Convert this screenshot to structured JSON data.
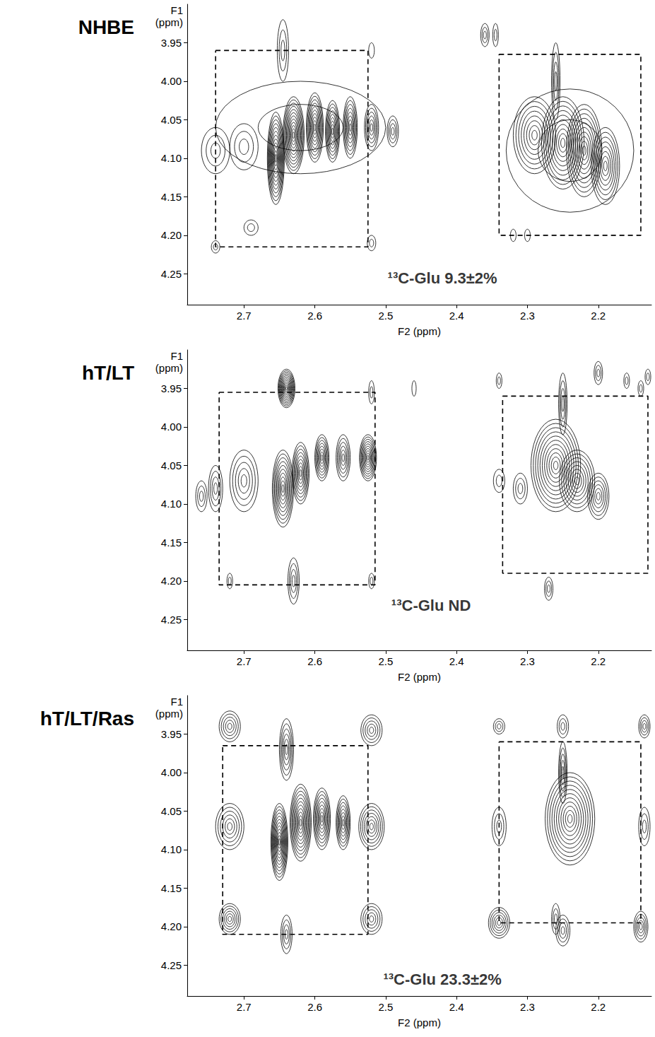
{
  "chart_data": [
    {
      "type": "contour",
      "title": "NHBE",
      "xlabel": "F2 (ppm)",
      "ylabel": "F1 (ppm)",
      "xlim": [
        2.78,
        2.125
      ],
      "ylim": [
        4.29,
        3.9
      ],
      "xticks": [
        2.7,
        2.6,
        2.5,
        2.4,
        2.3,
        2.2
      ],
      "yticks": [
        3.95,
        {
          "value": 4,
          "label": "4.00"
        },
        4.05,
        {
          "value": 4.1,
          "label": "4.10"
        },
        4.15,
        {
          "value": 4.2,
          "label": "4.20"
        },
        4.25
      ],
      "grid": false,
      "color": "#000000",
      "annotations": [
        {
          "text": "¹³C-Glu 9.3±2%",
          "x": 2.42,
          "y": 4.256
        }
      ],
      "boxes": [
        {
          "x": [
            2.74,
            2.525
          ],
          "y": [
            3.96,
            4.215
          ],
          "line_style": "dashed"
        },
        {
          "x": [
            2.34,
            2.14
          ],
          "y": [
            3.965,
            4.2
          ],
          "line_style": "dashed"
        }
      ],
      "peaks": [
        {
          "x": 2.62,
          "y": 4.06,
          "wx": 0.12,
          "wy": 0.06,
          "levels": 2
        },
        {
          "x": 2.655,
          "y": 4.1,
          "wx": 0.012,
          "wy": 0.06,
          "levels": 12
        },
        {
          "x": 2.63,
          "y": 4.07,
          "wx": 0.015,
          "wy": 0.05,
          "levels": 12
        },
        {
          "x": 2.6,
          "y": 4.06,
          "wx": 0.012,
          "wy": 0.045,
          "levels": 10
        },
        {
          "x": 2.575,
          "y": 4.065,
          "wx": 0.01,
          "wy": 0.04,
          "levels": 9
        },
        {
          "x": 2.55,
          "y": 4.06,
          "wx": 0.01,
          "wy": 0.04,
          "levels": 8
        },
        {
          "x": 2.52,
          "y": 4.06,
          "wx": 0.01,
          "wy": 0.03,
          "levels": 6
        },
        {
          "x": 2.49,
          "y": 4.065,
          "wx": 0.008,
          "wy": 0.02,
          "levels": 4
        },
        {
          "x": 2.74,
          "y": 4.09,
          "wx": 0.02,
          "wy": 0.03,
          "levels": 3
        },
        {
          "x": 2.7,
          "y": 4.085,
          "wx": 0.02,
          "wy": 0.03,
          "levels": 3
        },
        {
          "x": 2.645,
          "y": 3.96,
          "wx": 0.008,
          "wy": 0.04,
          "levels": 3
        },
        {
          "x": 2.74,
          "y": 4.215,
          "wx": 0.006,
          "wy": 0.008,
          "levels": 2
        },
        {
          "x": 2.52,
          "y": 4.21,
          "wx": 0.006,
          "wy": 0.01,
          "levels": 2
        },
        {
          "x": 2.52,
          "y": 3.96,
          "wx": 0.004,
          "wy": 0.01,
          "levels": 1
        },
        {
          "x": 2.69,
          "y": 4.19,
          "wx": 0.01,
          "wy": 0.01,
          "levels": 2
        },
        {
          "x": 2.36,
          "y": 3.94,
          "wx": 0.006,
          "wy": 0.015,
          "levels": 3
        },
        {
          "x": 2.345,
          "y": 3.94,
          "wx": 0.004,
          "wy": 0.015,
          "levels": 2
        },
        {
          "x": 2.24,
          "y": 4.09,
          "wx": 0.09,
          "wy": 0.08,
          "levels": 2
        },
        {
          "x": 2.29,
          "y": 4.07,
          "wx": 0.03,
          "wy": 0.05,
          "levels": 8
        },
        {
          "x": 2.25,
          "y": 4.08,
          "wx": 0.03,
          "wy": 0.06,
          "levels": 10
        },
        {
          "x": 2.22,
          "y": 4.09,
          "wx": 0.025,
          "wy": 0.06,
          "levels": 10
        },
        {
          "x": 2.19,
          "y": 4.11,
          "wx": 0.02,
          "wy": 0.05,
          "levels": 8
        },
        {
          "x": 2.26,
          "y": 4.0,
          "wx": 0.006,
          "wy": 0.05,
          "levels": 4
        },
        {
          "x": 2.3,
          "y": 4.2,
          "wx": 0.004,
          "wy": 0.008,
          "levels": 1
        },
        {
          "x": 2.32,
          "y": 4.2,
          "wx": 0.004,
          "wy": 0.008,
          "levels": 1
        }
      ]
    },
    {
      "type": "contour",
      "title": "hT/LT",
      "xlabel": "F2 (ppm)",
      "ylabel": "F1 (ppm)",
      "xlim": [
        2.78,
        2.125
      ],
      "ylim": [
        4.29,
        3.9
      ],
      "xticks": [
        2.7,
        2.6,
        2.5,
        2.4,
        2.3,
        2.2
      ],
      "yticks": [
        3.95,
        {
          "value": 4,
          "label": "4.00"
        },
        4.05,
        {
          "value": 4.1,
          "label": "4.10"
        },
        4.15,
        {
          "value": 4.2,
          "label": "4.20"
        },
        4.25
      ],
      "grid": false,
      "color": "#000000",
      "annotations": [
        {
          "text": "¹³C-Glu ND",
          "x": 2.436,
          "y": 4.232
        }
      ],
      "boxes": [
        {
          "x": [
            2.735,
            2.515
          ],
          "y": [
            3.955,
            4.205
          ],
          "line_style": "dashed"
        },
        {
          "x": [
            2.335,
            2.13
          ],
          "y": [
            3.96,
            4.19
          ],
          "line_style": "dashed"
        }
      ],
      "peaks": [
        {
          "x": 2.64,
          "y": 3.95,
          "wx": 0.012,
          "wy": 0.025,
          "levels": 12
        },
        {
          "x": 2.645,
          "y": 4.08,
          "wx": 0.015,
          "wy": 0.05,
          "levels": 10
        },
        {
          "x": 2.62,
          "y": 4.06,
          "wx": 0.012,
          "wy": 0.04,
          "levels": 9
        },
        {
          "x": 2.59,
          "y": 4.04,
          "wx": 0.01,
          "wy": 0.03,
          "levels": 8
        },
        {
          "x": 2.56,
          "y": 4.04,
          "wx": 0.01,
          "wy": 0.03,
          "levels": 6
        },
        {
          "x": 2.525,
          "y": 4.04,
          "wx": 0.012,
          "wy": 0.03,
          "levels": 10
        },
        {
          "x": 2.7,
          "y": 4.07,
          "wx": 0.02,
          "wy": 0.04,
          "levels": 5
        },
        {
          "x": 2.74,
          "y": 4.08,
          "wx": 0.01,
          "wy": 0.03,
          "levels": 4
        },
        {
          "x": 2.76,
          "y": 4.09,
          "wx": 0.008,
          "wy": 0.02,
          "levels": 3
        },
        {
          "x": 2.63,
          "y": 4.2,
          "wx": 0.008,
          "wy": 0.03,
          "levels": 4
        },
        {
          "x": 2.52,
          "y": 4.2,
          "wx": 0.004,
          "wy": 0.01,
          "levels": 2
        },
        {
          "x": 2.72,
          "y": 4.2,
          "wx": 0.004,
          "wy": 0.01,
          "levels": 2
        },
        {
          "x": 2.46,
          "y": 3.95,
          "wx": 0.003,
          "wy": 0.01,
          "levels": 1
        },
        {
          "x": 2.52,
          "y": 3.955,
          "wx": 0.004,
          "wy": 0.015,
          "levels": 2
        },
        {
          "x": 2.26,
          "y": 4.05,
          "wx": 0.035,
          "wy": 0.06,
          "levels": 11
        },
        {
          "x": 2.23,
          "y": 4.07,
          "wx": 0.025,
          "wy": 0.04,
          "levels": 8
        },
        {
          "x": 2.2,
          "y": 4.09,
          "wx": 0.015,
          "wy": 0.03,
          "levels": 6
        },
        {
          "x": 2.31,
          "y": 4.08,
          "wx": 0.01,
          "wy": 0.02,
          "levels": 3
        },
        {
          "x": 2.34,
          "y": 4.07,
          "wx": 0.008,
          "wy": 0.015,
          "levels": 2
        },
        {
          "x": 2.25,
          "y": 3.97,
          "wx": 0.006,
          "wy": 0.04,
          "levels": 4
        },
        {
          "x": 2.27,
          "y": 4.21,
          "wx": 0.006,
          "wy": 0.015,
          "levels": 3
        },
        {
          "x": 2.34,
          "y": 3.94,
          "wx": 0.004,
          "wy": 0.01,
          "levels": 2
        },
        {
          "x": 2.2,
          "y": 3.93,
          "wx": 0.006,
          "wy": 0.015,
          "levels": 3
        },
        {
          "x": 2.16,
          "y": 3.94,
          "wx": 0.004,
          "wy": 0.01,
          "levels": 2
        },
        {
          "x": 2.14,
          "y": 3.95,
          "wx": 0.004,
          "wy": 0.01,
          "levels": 2
        },
        {
          "x": 2.13,
          "y": 3.935,
          "wx": 0.004,
          "wy": 0.01,
          "levels": 2
        }
      ]
    },
    {
      "type": "contour",
      "title": "hT/LT/Ras",
      "xlabel": "F2 (ppm)",
      "ylabel": "F1 (ppm)",
      "xlim": [
        2.78,
        2.125
      ],
      "ylim": [
        4.29,
        3.9
      ],
      "xticks": [
        2.7,
        2.6,
        2.5,
        2.4,
        2.3,
        2.2
      ],
      "yticks": [
        3.95,
        {
          "value": 4,
          "label": "4.00"
        },
        4.05,
        {
          "value": 4.1,
          "label": "4.10"
        },
        4.15,
        {
          "value": 4.2,
          "label": "4.20"
        },
        4.25
      ],
      "grid": false,
      "color": "#000000",
      "annotations": [
        {
          "text": "¹³C-Glu 23.3±2%",
          "x": 2.42,
          "y": 4.268
        }
      ],
      "boxes": [
        {
          "x": [
            2.73,
            2.525
          ],
          "y": [
            3.965,
            4.21
          ],
          "line_style": "dashed"
        },
        {
          "x": [
            2.34,
            2.14
          ],
          "y": [
            3.96,
            4.195
          ],
          "line_style": "dashed"
        }
      ],
      "peaks": [
        {
          "x": 2.72,
          "y": 3.94,
          "wx": 0.015,
          "wy": 0.02,
          "levels": 5
        },
        {
          "x": 2.52,
          "y": 3.945,
          "wx": 0.015,
          "wy": 0.02,
          "levels": 5
        },
        {
          "x": 2.72,
          "y": 4.07,
          "wx": 0.02,
          "wy": 0.03,
          "levels": 6
        },
        {
          "x": 2.52,
          "y": 4.07,
          "wx": 0.018,
          "wy": 0.03,
          "levels": 7
        },
        {
          "x": 2.72,
          "y": 4.19,
          "wx": 0.015,
          "wy": 0.02,
          "levels": 6
        },
        {
          "x": 2.52,
          "y": 4.19,
          "wx": 0.015,
          "wy": 0.02,
          "levels": 5
        },
        {
          "x": 2.64,
          "y": 4.21,
          "wx": 0.008,
          "wy": 0.025,
          "levels": 4
        },
        {
          "x": 2.64,
          "y": 3.97,
          "wx": 0.01,
          "wy": 0.04,
          "levels": 6
        },
        {
          "x": 2.65,
          "y": 4.09,
          "wx": 0.012,
          "wy": 0.05,
          "levels": 12
        },
        {
          "x": 2.62,
          "y": 4.065,
          "wx": 0.015,
          "wy": 0.05,
          "levels": 11
        },
        {
          "x": 2.59,
          "y": 4.06,
          "wx": 0.012,
          "wy": 0.04,
          "levels": 9
        },
        {
          "x": 2.56,
          "y": 4.065,
          "wx": 0.01,
          "wy": 0.035,
          "levels": 8
        },
        {
          "x": 2.34,
          "y": 3.94,
          "wx": 0.008,
          "wy": 0.01,
          "levels": 3
        },
        {
          "x": 2.25,
          "y": 3.94,
          "wx": 0.008,
          "wy": 0.015,
          "levels": 3
        },
        {
          "x": 2.135,
          "y": 3.94,
          "wx": 0.008,
          "wy": 0.015,
          "levels": 4
        },
        {
          "x": 2.34,
          "y": 4.07,
          "wx": 0.01,
          "wy": 0.025,
          "levels": 3
        },
        {
          "x": 2.135,
          "y": 4.07,
          "wx": 0.008,
          "wy": 0.025,
          "levels": 3
        },
        {
          "x": 2.34,
          "y": 4.195,
          "wx": 0.015,
          "wy": 0.02,
          "levels": 6
        },
        {
          "x": 2.25,
          "y": 4.205,
          "wx": 0.01,
          "wy": 0.02,
          "levels": 4
        },
        {
          "x": 2.14,
          "y": 4.2,
          "wx": 0.01,
          "wy": 0.02,
          "levels": 5
        },
        {
          "x": 2.24,
          "y": 4.06,
          "wx": 0.035,
          "wy": 0.06,
          "levels": 11
        },
        {
          "x": 2.25,
          "y": 4.0,
          "wx": 0.006,
          "wy": 0.04,
          "levels": 5
        },
        {
          "x": 2.26,
          "y": 4.19,
          "wx": 0.006,
          "wy": 0.02,
          "levels": 3
        }
      ]
    }
  ]
}
